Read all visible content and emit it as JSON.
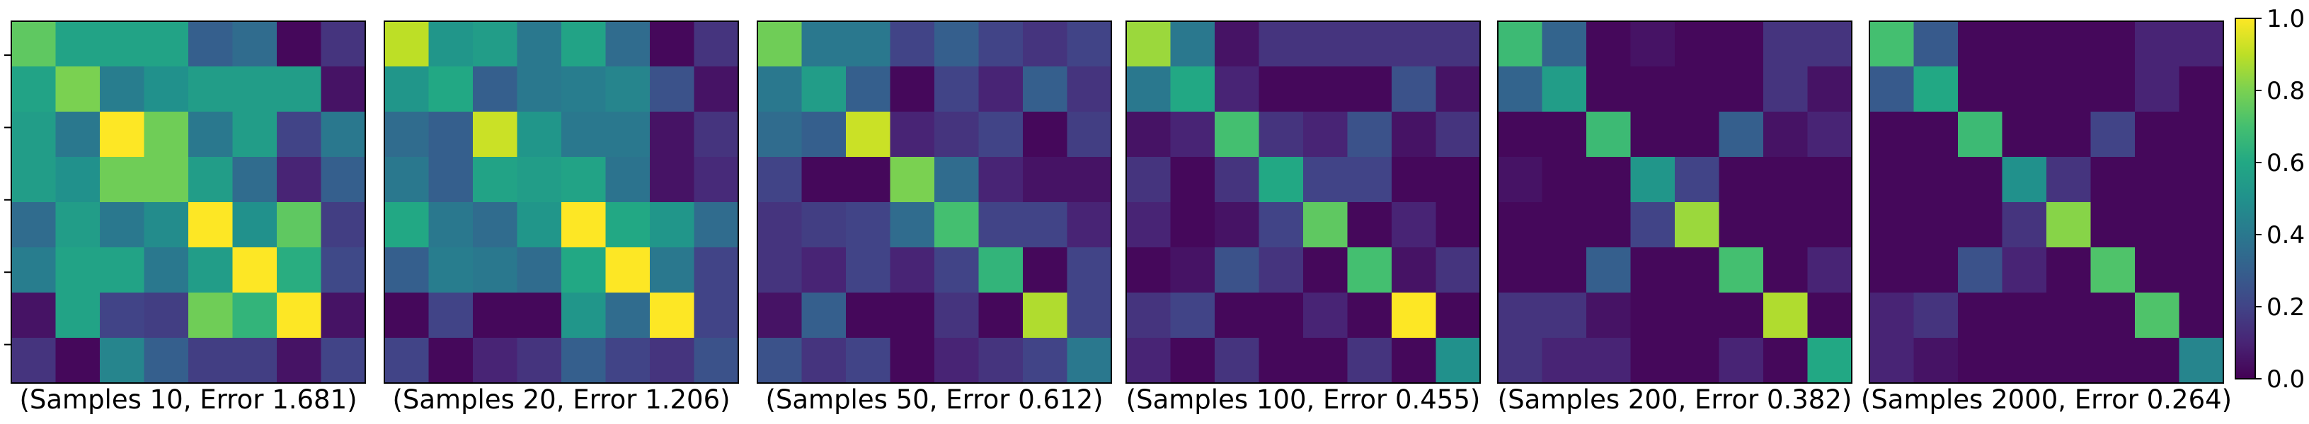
{
  "chart_data": [
    {
      "type": "heatmap",
      "caption": "(Samples 10, Error 1.681)",
      "values": [
        [
          0.75,
          0.58,
          0.58,
          0.58,
          0.3,
          0.35,
          0.02,
          0.15
        ],
        [
          0.58,
          0.8,
          0.42,
          0.5,
          0.55,
          0.55,
          0.55,
          0.05
        ],
        [
          0.55,
          0.4,
          1.0,
          0.78,
          0.4,
          0.55,
          0.2,
          0.4
        ],
        [
          0.55,
          0.5,
          0.78,
          0.78,
          0.55,
          0.35,
          0.1,
          0.3
        ],
        [
          0.35,
          0.55,
          0.4,
          0.48,
          1.0,
          0.5,
          0.75,
          0.18
        ],
        [
          0.42,
          0.58,
          0.58,
          0.4,
          0.55,
          1.0,
          0.62,
          0.22
        ],
        [
          0.05,
          0.58,
          0.2,
          0.18,
          0.78,
          0.65,
          1.0,
          0.05
        ],
        [
          0.15,
          0.02,
          0.45,
          0.3,
          0.18,
          0.18,
          0.05,
          0.2
        ]
      ]
    },
    {
      "type": "heatmap",
      "caption": "(Samples 20, Error 1.206)",
      "values": [
        [
          0.9,
          0.52,
          0.55,
          0.4,
          0.58,
          0.35,
          0.02,
          0.15
        ],
        [
          0.52,
          0.6,
          0.3,
          0.4,
          0.42,
          0.45,
          0.25,
          0.05
        ],
        [
          0.35,
          0.3,
          0.92,
          0.52,
          0.4,
          0.4,
          0.05,
          0.15
        ],
        [
          0.4,
          0.3,
          0.58,
          0.55,
          0.58,
          0.38,
          0.05,
          0.12
        ],
        [
          0.6,
          0.4,
          0.35,
          0.52,
          1.0,
          0.6,
          0.52,
          0.35
        ],
        [
          0.3,
          0.42,
          0.4,
          0.35,
          0.6,
          1.0,
          0.4,
          0.2
        ],
        [
          0.02,
          0.2,
          0.02,
          0.02,
          0.52,
          0.35,
          1.0,
          0.2
        ],
        [
          0.2,
          0.02,
          0.1,
          0.15,
          0.3,
          0.2,
          0.15,
          0.25
        ]
      ]
    },
    {
      "type": "heatmap",
      "caption": "(Samples 50, Error 0.612)",
      "values": [
        [
          0.78,
          0.4,
          0.4,
          0.2,
          0.3,
          0.2,
          0.15,
          0.2
        ],
        [
          0.4,
          0.55,
          0.3,
          0.02,
          0.2,
          0.1,
          0.3,
          0.15
        ],
        [
          0.35,
          0.3,
          0.92,
          0.1,
          0.15,
          0.2,
          0.02,
          0.18
        ],
        [
          0.2,
          0.02,
          0.02,
          0.8,
          0.35,
          0.1,
          0.05,
          0.05
        ],
        [
          0.15,
          0.18,
          0.2,
          0.35,
          0.7,
          0.2,
          0.2,
          0.1
        ],
        [
          0.15,
          0.1,
          0.2,
          0.1,
          0.2,
          0.65,
          0.02,
          0.2
        ],
        [
          0.05,
          0.3,
          0.02,
          0.02,
          0.15,
          0.02,
          0.88,
          0.2
        ],
        [
          0.25,
          0.15,
          0.2,
          0.02,
          0.1,
          0.15,
          0.2,
          0.4
        ]
      ]
    },
    {
      "type": "heatmap",
      "caption": "(Samples 100, Error 0.455)",
      "values": [
        [
          0.85,
          0.4,
          0.05,
          0.15,
          0.15,
          0.15,
          0.15,
          0.15
        ],
        [
          0.4,
          0.6,
          0.1,
          0.02,
          0.02,
          0.02,
          0.25,
          0.05
        ],
        [
          0.05,
          0.1,
          0.7,
          0.15,
          0.1,
          0.25,
          0.05,
          0.15
        ],
        [
          0.15,
          0.02,
          0.15,
          0.6,
          0.2,
          0.2,
          0.02,
          0.02
        ],
        [
          0.1,
          0.02,
          0.05,
          0.2,
          0.75,
          0.02,
          0.1,
          0.02
        ],
        [
          0.02,
          0.05,
          0.25,
          0.15,
          0.02,
          0.7,
          0.05,
          0.15
        ],
        [
          0.15,
          0.2,
          0.02,
          0.02,
          0.1,
          0.02,
          1.0,
          0.02
        ],
        [
          0.1,
          0.02,
          0.15,
          0.02,
          0.02,
          0.15,
          0.02,
          0.5
        ]
      ]
    },
    {
      "type": "heatmap",
      "caption": "(Samples 200, Error 0.382)",
      "values": [
        [
          0.68,
          0.32,
          0.02,
          0.05,
          0.02,
          0.02,
          0.15,
          0.15
        ],
        [
          0.32,
          0.55,
          0.02,
          0.02,
          0.02,
          0.02,
          0.15,
          0.05
        ],
        [
          0.02,
          0.02,
          0.68,
          0.02,
          0.02,
          0.3,
          0.05,
          0.1
        ],
        [
          0.05,
          0.02,
          0.02,
          0.52,
          0.2,
          0.02,
          0.02,
          0.02
        ],
        [
          0.02,
          0.02,
          0.02,
          0.2,
          0.85,
          0.02,
          0.02,
          0.02
        ],
        [
          0.02,
          0.02,
          0.3,
          0.02,
          0.02,
          0.7,
          0.02,
          0.1
        ],
        [
          0.15,
          0.15,
          0.05,
          0.02,
          0.02,
          0.02,
          0.88,
          0.02
        ],
        [
          0.15,
          0.1,
          0.1,
          0.02,
          0.02,
          0.1,
          0.02,
          0.6
        ]
      ]
    },
    {
      "type": "heatmap",
      "caption": "(Samples 2000, Error 0.264)",
      "values": [
        [
          0.7,
          0.28,
          0.02,
          0.02,
          0.02,
          0.02,
          0.1,
          0.1
        ],
        [
          0.28,
          0.6,
          0.02,
          0.02,
          0.02,
          0.02,
          0.1,
          0.02
        ],
        [
          0.02,
          0.02,
          0.68,
          0.02,
          0.02,
          0.2,
          0.02,
          0.02
        ],
        [
          0.02,
          0.02,
          0.02,
          0.5,
          0.15,
          0.02,
          0.02,
          0.02
        ],
        [
          0.02,
          0.02,
          0.02,
          0.15,
          0.82,
          0.02,
          0.02,
          0.02
        ],
        [
          0.02,
          0.02,
          0.25,
          0.1,
          0.02,
          0.72,
          0.02,
          0.02
        ],
        [
          0.1,
          0.15,
          0.02,
          0.02,
          0.02,
          0.02,
          0.72,
          0.02
        ],
        [
          0.1,
          0.05,
          0.02,
          0.02,
          0.02,
          0.02,
          0.02,
          0.45
        ]
      ]
    }
  ],
  "colorbar": {
    "colormap": "viridis",
    "range": [
      0.0,
      1.0
    ],
    "tick_labels": [
      "0.0",
      "0.2",
      "0.4",
      "0.6",
      "0.8",
      "1.0"
    ]
  }
}
